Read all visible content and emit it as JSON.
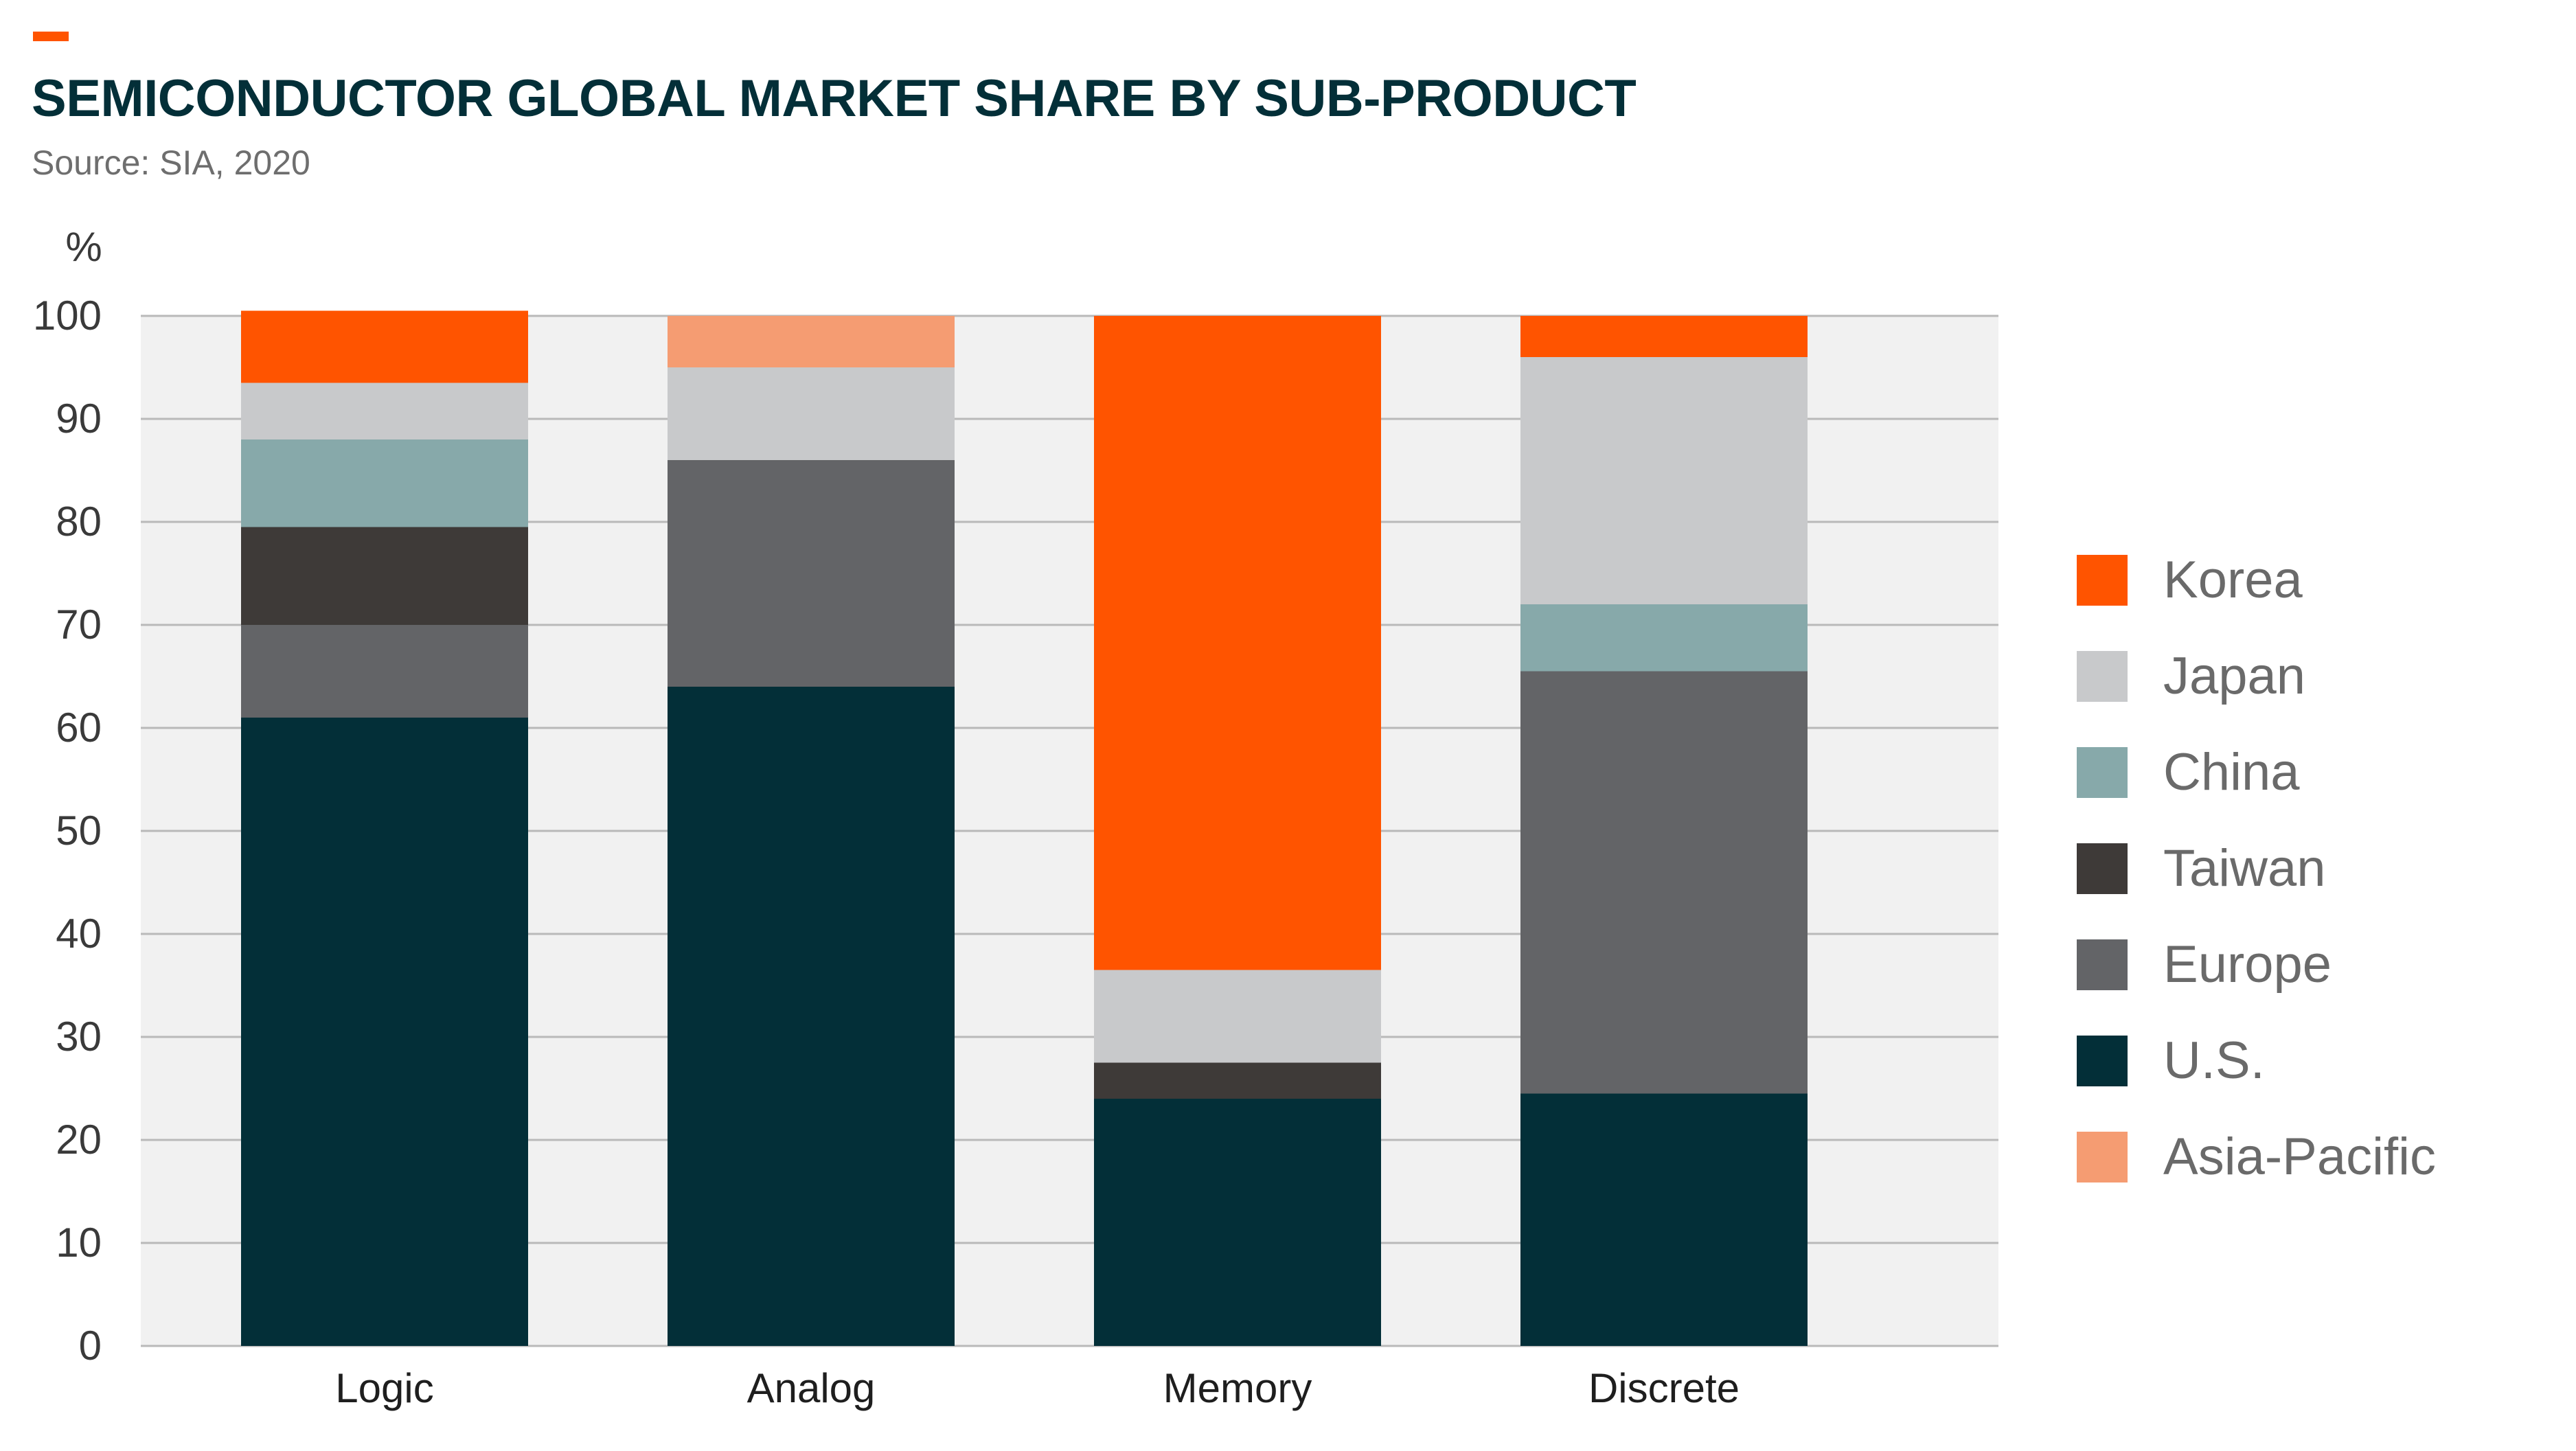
{
  "header": {
    "title": "SEMICONDUCTOR GLOBAL MARKET SHARE BY SUB-PRODUCT",
    "source": "Source: SIA, 2020",
    "accent_color": "#ff5400"
  },
  "chart_data": {
    "type": "bar",
    "stacked": true,
    "ylabel": "%",
    "ylim": [
      0,
      100
    ],
    "yticks": [
      0,
      10,
      20,
      30,
      40,
      50,
      60,
      70,
      80,
      90,
      100
    ],
    "grid": true,
    "legend_position": "right",
    "categories": [
      "Logic",
      "Analog",
      "Memory",
      "Discrete"
    ],
    "series": [
      {
        "name": "U.S.",
        "color": "#032f38",
        "values": [
          61,
          64,
          24,
          24.5
        ]
      },
      {
        "name": "Europe",
        "color": "#636467",
        "values": [
          9,
          22,
          0,
          41
        ]
      },
      {
        "name": "Taiwan",
        "color": "#3e3a38",
        "values": [
          9.5,
          0,
          3.5,
          0
        ]
      },
      {
        "name": "China",
        "color": "#87a9aa",
        "values": [
          8.5,
          0,
          0,
          6.5
        ]
      },
      {
        "name": "Japan",
        "color": "#c8c9cb",
        "values": [
          5.5,
          9,
          9,
          24
        ]
      },
      {
        "name": "Korea",
        "color": "#ff5400",
        "values": [
          7,
          0,
          63.5,
          4
        ]
      },
      {
        "name": "Asia-Pacific",
        "color": "#f59c72",
        "values": [
          0,
          5,
          0,
          0
        ]
      }
    ],
    "legend_order": [
      "Korea",
      "Japan",
      "China",
      "Taiwan",
      "Europe",
      "U.S.",
      "Asia-Pacific"
    ]
  }
}
